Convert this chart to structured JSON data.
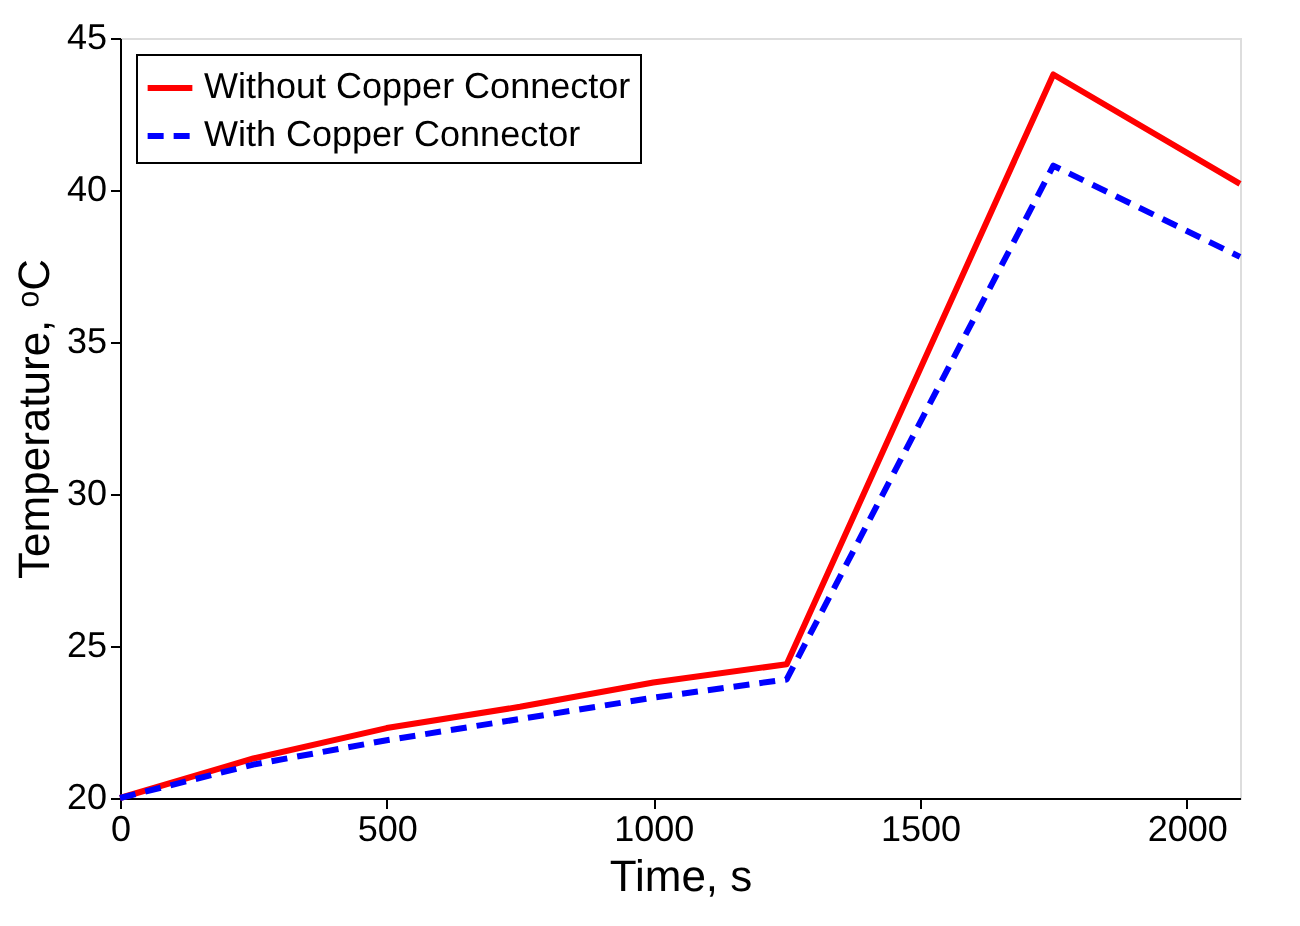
{
  "chart_data": {
    "type": "line",
    "xlabel": "Time, s",
    "ylabel": "Temperature, ᵒC",
    "x": [
      0,
      250,
      500,
      750,
      1000,
      1250,
      1750,
      2100
    ],
    "series": [
      {
        "name": "Without Copper Connector",
        "color": "#ff0000",
        "line_style": "solid",
        "values": [
          20,
          21.3,
          22.3,
          23.0,
          23.8,
          24.4,
          43.8,
          40.2
        ]
      },
      {
        "name": "With Copper Connector",
        "color": "#0000ff",
        "line_style": "dashed",
        "values": [
          20,
          21.1,
          21.9,
          22.6,
          23.3,
          23.9,
          40.8,
          37.8
        ]
      }
    ],
    "xlim": [
      0,
      2100
    ],
    "xticks": [
      0,
      500,
      1000,
      1500,
      2000
    ],
    "ylim": [
      20,
      45
    ],
    "yticks": [
      20,
      25,
      30,
      35,
      40,
      45
    ],
    "grid": false,
    "legend": "top left",
    "marker": "none"
  }
}
